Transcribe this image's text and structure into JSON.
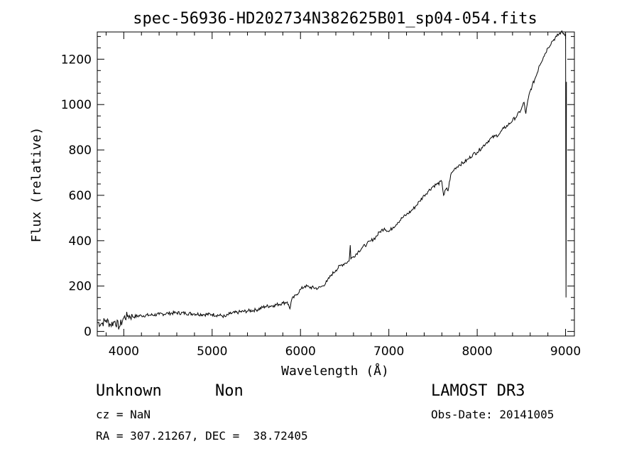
{
  "chart_data": {
    "type": "line",
    "title": "spec-56936-HD202734N382625B01_sp04-054.fits",
    "xlabel": "Wavelength (Å)",
    "ylabel": "Flux (relative)",
    "xlim": [
      3700,
      9100
    ],
    "ylim": [
      -20,
      1320
    ],
    "xticks": [
      4000,
      5000,
      6000,
      7000,
      8000,
      9000
    ],
    "yticks": [
      0,
      200,
      400,
      600,
      800,
      1000,
      1200
    ],
    "grid": false,
    "series": [
      {
        "x": [
          3700,
          3750,
          3800,
          3850,
          3900,
          3950,
          4000,
          4050,
          4100,
          4200,
          4300,
          4400,
          4500,
          4600,
          4700,
          4800,
          4900,
          5000,
          5100,
          5150,
          5200,
          5300,
          5400,
          5500,
          5600,
          5700,
          5800,
          5850,
          5880,
          5900,
          5950,
          6000,
          6050,
          6100,
          6200,
          6250,
          6300,
          6350,
          6400,
          6450,
          6500,
          6550,
          6563,
          6570,
          6600,
          6650,
          6700,
          6750,
          6800,
          6850,
          6900,
          6950,
          7000,
          7050,
          7100,
          7150,
          7200,
          7250,
          7300,
          7350,
          7400,
          7450,
          7500,
          7550,
          7600,
          7620,
          7650,
          7670,
          7700,
          7750,
          7800,
          7850,
          7900,
          7950,
          8000,
          8050,
          8100,
          8150,
          8200,
          8250,
          8300,
          8350,
          8400,
          8450,
          8500,
          8530,
          8550,
          8580,
          8600,
          8620,
          8650,
          8680,
          8700,
          8750,
          8800,
          8850,
          8900,
          8950,
          9000,
          9005,
          9010
        ],
        "values": [
          40,
          35,
          50,
          30,
          45,
          20,
          60,
          70,
          65,
          70,
          72,
          75,
          80,
          82,
          80,
          78,
          75,
          75,
          70,
          65,
          78,
          85,
          90,
          95,
          110,
          115,
          125,
          130,
          100,
          140,
          160,
          185,
          200,
          195,
          190,
          200,
          220,
          250,
          270,
          290,
          300,
          310,
          380,
          320,
          330,
          350,
          370,
          385,
          400,
          415,
          440,
          455,
          440,
          460,
          480,
          500,
          515,
          530,
          550,
          575,
          600,
          620,
          640,
          650,
          660,
          600,
          630,
          620,
          690,
          720,
          735,
          745,
          760,
          780,
          790,
          810,
          830,
          850,
          860,
          870,
          895,
          910,
          930,
          950,
          980,
          1010,
          960,
          1030,
          1060,
          1080,
          1110,
          1140,
          1170,
          1210,
          1250,
          1280,
          1300,
          1320,
          1310,
          150,
          1100
        ]
      }
    ]
  },
  "info": {
    "object_class": "Unknown",
    "subclass": "Non",
    "survey": "LAMOST DR3",
    "cz": "cz = NaN",
    "obs_date": "Obs-Date: 20141005",
    "coords": "RA = 307.21267, DEC =  38.72405"
  }
}
